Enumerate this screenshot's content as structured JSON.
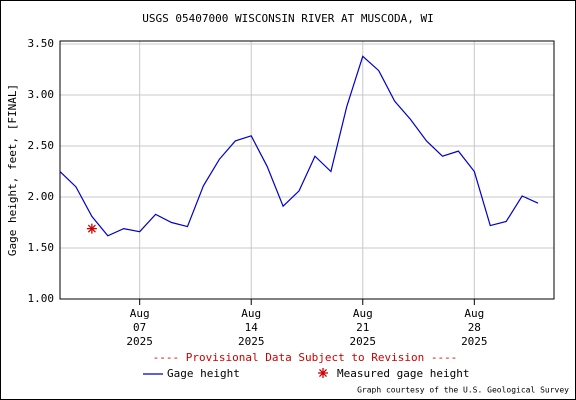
{
  "chart_data": {
    "type": "line",
    "title": "USGS 05407000 WISCONSIN RIVER AT MUSCODA, WI",
    "y_label": "Gage height, feet, [FINAL]",
    "notice": "---- Provisional Data Subject to Revision ----",
    "credit": "Graph courtesy of the U.S. Geological Survey",
    "x": [
      "2025-08-02",
      "2025-08-03",
      "2025-08-04",
      "2025-08-05",
      "2025-08-06",
      "2025-08-07",
      "2025-08-08",
      "2025-08-09",
      "2025-08-10",
      "2025-08-11",
      "2025-08-12",
      "2025-08-13",
      "2025-08-14",
      "2025-08-15",
      "2025-08-16",
      "2025-08-17",
      "2025-08-18",
      "2025-08-19",
      "2025-08-20",
      "2025-08-21",
      "2025-08-22",
      "2025-08-23",
      "2025-08-24",
      "2025-08-25",
      "2025-08-26",
      "2025-08-27",
      "2025-08-28",
      "2025-08-29",
      "2025-08-30",
      "2025-08-31",
      "2025-09-01"
    ],
    "series": [
      {
        "name": "Gage height",
        "color": "#0000cc",
        "values": [
          2.25,
          2.1,
          1.81,
          1.62,
          1.69,
          1.66,
          1.83,
          1.75,
          1.71,
          2.11,
          2.37,
          2.55,
          2.6,
          2.3,
          1.91,
          2.06,
          2.4,
          2.25,
          2.89,
          3.38,
          3.24,
          2.94,
          2.76,
          2.55,
          2.4,
          2.45,
          2.25,
          1.72,
          1.76,
          2.01,
          1.94
        ]
      },
      {
        "name": "Measured gage height",
        "color": "#cc0000",
        "marker": "asterisk",
        "x": [
          "2025-08-04"
        ],
        "values": [
          1.69
        ]
      }
    ],
    "xlim": [
      "2025-08-02",
      "2025-09-02"
    ],
    "xticks": [
      {
        "value": "2025-08-07",
        "label": "Aug\n07\n2025"
      },
      {
        "value": "2025-08-14",
        "label": "Aug\n14\n2025"
      },
      {
        "value": "2025-08-21",
        "label": "Aug\n21\n2025"
      },
      {
        "value": "2025-08-28",
        "label": "Aug\n28\n2025"
      }
    ],
    "ylim": [
      1.0,
      3.53
    ],
    "yticks": [
      {
        "value": 1.0,
        "label": "1.00"
      },
      {
        "value": 1.5,
        "label": "1.50"
      },
      {
        "value": 2.0,
        "label": "2.00"
      },
      {
        "value": 2.5,
        "label": "2.50"
      },
      {
        "value": 3.0,
        "label": "3.00"
      },
      {
        "value": 3.5,
        "label": "3.50"
      }
    ],
    "grid": true
  }
}
